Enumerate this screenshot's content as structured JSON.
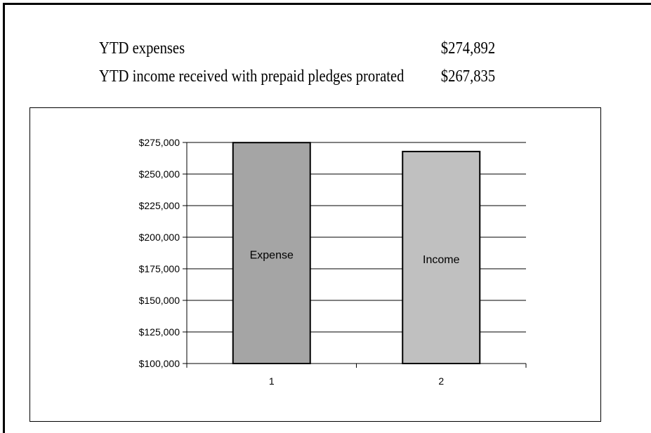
{
  "summary": {
    "expenses_label": "YTD expenses",
    "expenses_value": "$274,892",
    "income_label": "YTD income received with prepaid pledges prorated",
    "income_value": "$267,835"
  },
  "chart_data": {
    "type": "bar",
    "categories": [
      "1",
      "2"
    ],
    "values": [
      274892,
      267835
    ],
    "bar_labels": [
      "Expense",
      "Income"
    ],
    "bar_colors": [
      "#a5a5a5",
      "#c0c0c0"
    ],
    "ylim": [
      100000,
      275000
    ],
    "yticks": [
      100000,
      125000,
      150000,
      175000,
      200000,
      225000,
      250000,
      275000
    ],
    "ytick_labels": [
      "$100,000",
      "$125,000",
      "$150,000",
      "$175,000",
      "$200,000",
      "$225,000",
      "$250,000",
      "$275,000"
    ],
    "grid": true,
    "legend": "none",
    "title": "",
    "xlabel": "",
    "ylabel": ""
  }
}
